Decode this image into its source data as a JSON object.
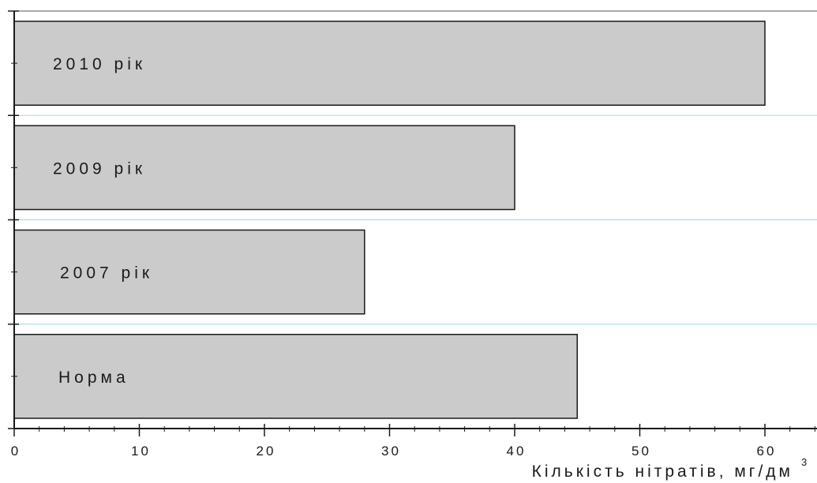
{
  "chart_data": {
    "type": "bar",
    "orientation": "horizontal",
    "categories": [
      "2010 рік",
      "2009 рік",
      "2007 рік",
      "Норма"
    ],
    "values": [
      60,
      40,
      28,
      45
    ],
    "xlabel": "Кількість нітратів, мг/дм",
    "xlabel_superscript": "3",
    "xlim": [
      0,
      65
    ],
    "xticks": [
      0,
      10,
      20,
      30,
      40,
      50,
      60
    ],
    "xtick_labels": [
      "0",
      "10",
      "20",
      "30",
      "40",
      "50",
      "60"
    ],
    "grid": "horizontal lines between bars",
    "legend": "none",
    "colors": {
      "bar_fill": "#cbcbcb",
      "bar_stroke": "#1a1a1a",
      "grid": "#9fd8e4",
      "axis": "#1a1a1a"
    }
  }
}
